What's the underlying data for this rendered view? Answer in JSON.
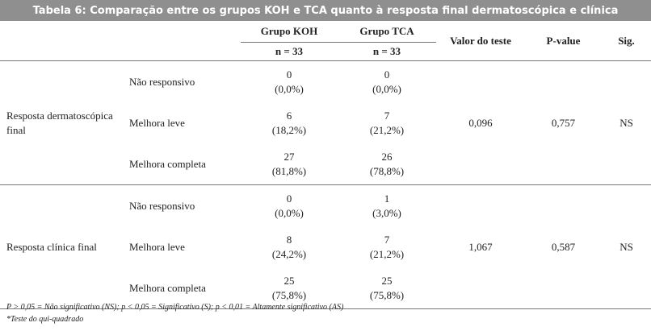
{
  "title": "Tabela 6: Comparação entre os grupos KOH e TCA quanto à resposta final dermatoscópica e clínica",
  "headers": {
    "group_koh": "Grupo KOH",
    "group_tca": "Grupo TCA",
    "n_koh": "n = 33",
    "n_tca": "n = 33",
    "test_value": "Valor do teste",
    "p_value": "P-value",
    "sig": "Sig."
  },
  "sections": [
    {
      "label": "Resposta dermatoscópica final",
      "test_value": "0,096",
      "p_value": "0,757",
      "sig": "NS",
      "rows": [
        {
          "level": "Não responsivo",
          "koh_n": "0",
          "koh_pct": "(0,0%)",
          "tca_n": "0",
          "tca_pct": "(0,0%)"
        },
        {
          "level": "Melhora leve",
          "koh_n": "6",
          "koh_pct": "(18,2%)",
          "tca_n": "7",
          "tca_pct": "(21,2%)"
        },
        {
          "level": "Melhora completa",
          "koh_n": "27",
          "koh_pct": "(81,8%)",
          "tca_n": "26",
          "tca_pct": "(78,8%)"
        }
      ]
    },
    {
      "label": "Resposta clínica final",
      "test_value": "1,067",
      "p_value": "0,587",
      "sig": "NS",
      "rows": [
        {
          "level": "Não responsivo",
          "koh_n": "0",
          "koh_pct": "(0,0%)",
          "tca_n": "1",
          "tca_pct": "(3,0%)"
        },
        {
          "level": "Melhora leve",
          "koh_n": "8",
          "koh_pct": "(24,2%)",
          "tca_n": "7",
          "tca_pct": "(21,2%)"
        },
        {
          "level": "Melhora completa",
          "koh_n": "25",
          "koh_pct": "(75,8%)",
          "tca_n": "25",
          "tca_pct": "(75,8%)"
        }
      ]
    }
  ],
  "footnotes": [
    "P > 0,05 = Não significativo (NS); p < 0,05 = Significativo (S); p < 0,01 = Altamente significativo (AS)",
    "*Teste do qui-quadrado"
  ]
}
